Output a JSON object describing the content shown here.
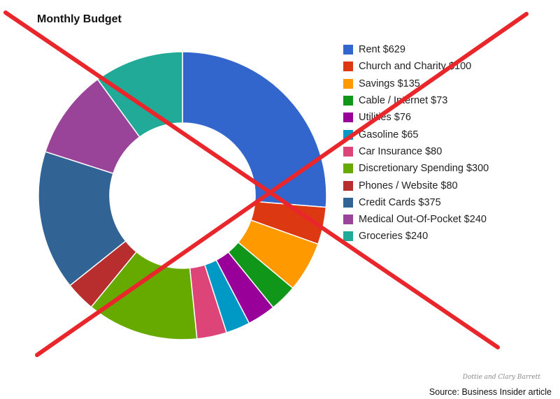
{
  "chart_data": {
    "type": "pie",
    "variant": "donut",
    "title": "Monthly Budget",
    "legend_position": "right",
    "series": [
      {
        "label": "Rent $629",
        "category": "Rent",
        "value": 629,
        "color": "#3366cc"
      },
      {
        "label": "Church and Charity $100",
        "category": "Church and Charity",
        "value": 100,
        "color": "#dc3912"
      },
      {
        "label": "Savings $135",
        "category": "Savings",
        "value": 135,
        "color": "#ff9900"
      },
      {
        "label": "Cable / Internet $73",
        "category": "Cable / Internet",
        "value": 73,
        "color": "#109618"
      },
      {
        "label": "Utilities $76",
        "category": "Utilities",
        "value": 76,
        "color": "#990099"
      },
      {
        "label": "Gasoline $65",
        "category": "Gasoline",
        "value": 65,
        "color": "#0099c6"
      },
      {
        "label": "Car Insurance $80",
        "category": "Car Insurance",
        "value": 80,
        "color": "#dd4477"
      },
      {
        "label": "Discretionary Spending $300",
        "category": "Discretionary Spending",
        "value": 300,
        "color": "#66aa00"
      },
      {
        "label": "Phones / Website $80",
        "category": "Phones / Website",
        "value": 80,
        "color": "#b82e2e"
      },
      {
        "label": "Credit Cards $375",
        "category": "Credit Cards",
        "value": 375,
        "color": "#316395"
      },
      {
        "label": "Medical Out-Of-Pocket $240",
        "category": "Medical Out-Of-Pocket",
        "value": 240,
        "color": "#994499"
      },
      {
        "label": "Groceries $240",
        "category": "Groceries",
        "value": 240,
        "color": "#22aa99"
      }
    ]
  },
  "overlay": {
    "type": "red X",
    "color": "#e8262b"
  },
  "credit": "Dottie and Clary Barrett",
  "source": "Source: Business Insider article"
}
